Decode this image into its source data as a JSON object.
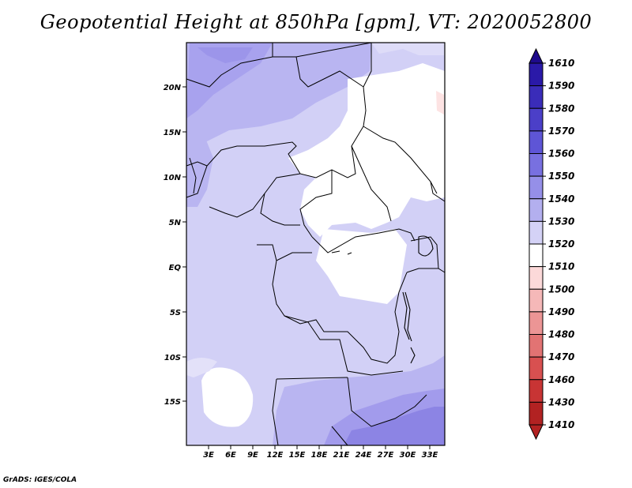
{
  "title": "Geopotential Height at 850hPa [gpm], VT: 2020052800",
  "credit": "GrADS: IGES/COLA",
  "map": {
    "lat_ticks": [
      "20N",
      "15N",
      "10N",
      "5N",
      "EQ",
      "5S",
      "10S",
      "15S"
    ],
    "lon_ticks": [
      "3E",
      "6E",
      "9E",
      "12E",
      "15E",
      "18E",
      "21E",
      "24E",
      "27E",
      "30E",
      "33E"
    ]
  },
  "colorbar": {
    "levels": [
      "1610",
      "1590",
      "1580",
      "1570",
      "1560",
      "1550",
      "1540",
      "1530",
      "1520",
      "1510",
      "1500",
      "1490",
      "1480",
      "1470",
      "1460",
      "1430",
      "1410"
    ],
    "colors": [
      "#1e0a8c",
      "#2a19a8",
      "#3a2cb9",
      "#4b3fc8",
      "#5e55d6",
      "#7870e0",
      "#958fe8",
      "#b3afef",
      "#d4d2f6",
      "#ffffff",
      "#fcd9d9",
      "#f5b8b8",
      "#ec9595",
      "#e27373",
      "#d85050",
      "#c83434",
      "#b22222"
    ]
  }
}
